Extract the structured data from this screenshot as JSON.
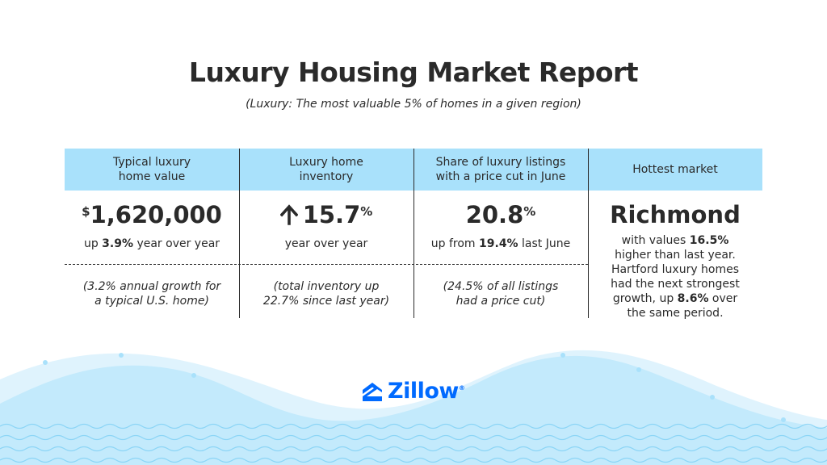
{
  "title": "Luxury Housing Market Report",
  "subtitle": "(Luxury: The most valuable 5% of homes in a given region)",
  "colors": {
    "header_band": "#a9e1fb",
    "text": "#2a2a2a",
    "brand_blue": "#006aff",
    "wave_light": "#dff3fd",
    "wave_mid": "#c3eafc"
  },
  "columns": [
    {
      "header_line1": "Typical luxury",
      "header_line2": "home value",
      "value_prefix": "$",
      "value": "1,620,000",
      "sub_pre": "up ",
      "sub_bold": "3.9%",
      "sub_post": " year over year",
      "note_line1": "(3.2% annual growth for",
      "note_line2": "a typical U.S. home)"
    },
    {
      "header_line1": "Luxury home",
      "header_line2": "inventory",
      "arrow_icon": "arrow-up-icon",
      "value": "15.7",
      "value_suffix": "%",
      "sub": "year over year",
      "note_line1": "(total inventory up",
      "note_line2": "22.7% since last year)"
    },
    {
      "header_line1": "Share of luxury listings",
      "header_line2": "with a price cut in June",
      "value": "20.8",
      "value_suffix": "%",
      "sub_pre": "up from ",
      "sub_bold": "19.4%",
      "sub_post": " last June",
      "note_line1": "(24.5% of all listings",
      "note_line2": "had a price cut)"
    },
    {
      "header": "Hottest market",
      "value": "Richmond",
      "desc_l1_pre": "with values ",
      "desc_l1_bold": "16.5%",
      "desc_l2": "higher than last year.",
      "desc_l3": "Hartford luxury homes",
      "desc_l4": "had the next strongest",
      "desc_l5_pre": "growth, up ",
      "desc_l5_bold": "8.6%",
      "desc_l5_post": " over",
      "desc_l6": "the same period."
    }
  ],
  "brand": {
    "name": "Zillow",
    "trademark": "®",
    "icon": "zillow-house-icon"
  }
}
